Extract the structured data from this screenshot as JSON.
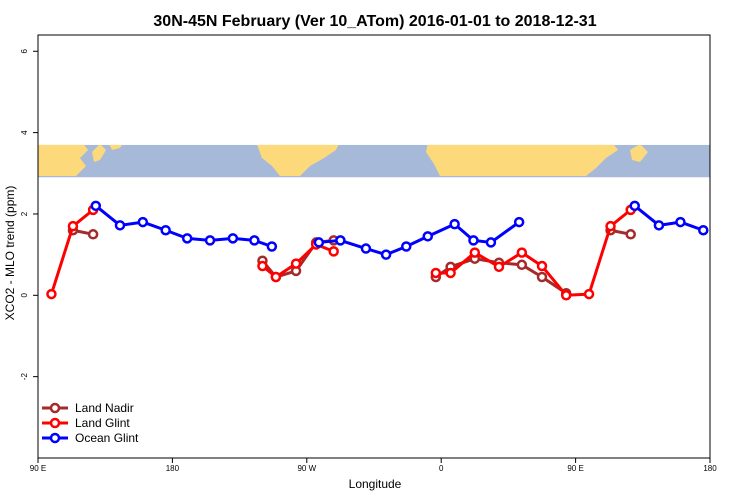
{
  "chart_data": {
    "type": "line",
    "title": "30N-45N February (Ver 10_ATom)   2016-01-01 to 2018-12-31",
    "xlabel": "Longitude",
    "ylabel": "XCO2 - MLO trend (ppm)",
    "xlim": [
      0,
      500
    ],
    "ylim": [
      -4,
      6.4
    ],
    "x_ticks": [
      {
        "value": 0,
        "label": "90 E"
      },
      {
        "value": 100,
        "label": "180"
      },
      {
        "value": 200,
        "label": "90 W"
      },
      {
        "value": 300,
        "label": "0"
      },
      {
        "value": 400,
        "label": "90 E"
      },
      {
        "value": 500,
        "label": "180"
      }
    ],
    "y_ticks": [
      {
        "value": -2,
        "label": "-2"
      },
      {
        "value": 0,
        "label": "0"
      },
      {
        "value": 2,
        "label": "2"
      },
      {
        "value": 4,
        "label": "4"
      },
      {
        "value": 6,
        "label": "6"
      }
    ],
    "map_band": {
      "y_min": 2.9,
      "y_max": 3.7,
      "ocean_color": "#A6B9D9",
      "land_color": "#FCD97A"
    },
    "legend_position": "bottom-left",
    "series": [
      {
        "name": "Land Nadir",
        "color": "#A52A2A",
        "segments": [
          [
            [
              26,
              1.6
            ],
            [
              41,
              1.5
            ]
          ],
          [
            [
              167,
              0.85
            ],
            [
              177,
              0.45
            ],
            [
              192,
              0.6
            ],
            [
              207,
              1.3
            ],
            [
              220,
              1.35
            ]
          ],
          [
            [
              296,
              0.45
            ],
            [
              307,
              0.7
            ],
            [
              325,
              0.9
            ],
            [
              343,
              0.8
            ],
            [
              360,
              0.75
            ],
            [
              375,
              0.45
            ],
            [
              393,
              0.05
            ]
          ],
          [
            [
              426,
              1.6
            ],
            [
              441,
              1.5
            ]
          ]
        ]
      },
      {
        "name": "Land Glint",
        "color": "#FF0000",
        "segments": [
          [
            [
              10,
              0.03
            ],
            [
              26,
              1.7
            ],
            [
              41,
              2.1
            ]
          ],
          [
            [
              167,
              0.72
            ],
            [
              177,
              0.45
            ],
            [
              192,
              0.78
            ],
            [
              207,
              1.25
            ],
            [
              220,
              1.08
            ]
          ],
          [
            [
              296,
              0.55
            ],
            [
              307,
              0.55
            ],
            [
              325,
              1.05
            ],
            [
              343,
              0.7
            ],
            [
              360,
              1.05
            ],
            [
              375,
              0.72
            ],
            [
              393,
              0.0
            ],
            [
              410,
              0.03
            ],
            [
              426,
              1.7
            ],
            [
              441,
              2.1
            ]
          ]
        ]
      },
      {
        "name": "Ocean Glint",
        "color": "#0000FF",
        "segments": [
          [
            [
              43,
              2.2
            ],
            [
              61,
              1.72
            ],
            [
              78,
              1.8
            ],
            [
              95,
              1.6
            ],
            [
              111,
              1.4
            ],
            [
              128,
              1.35
            ],
            [
              145,
              1.4
            ],
            [
              161,
              1.35
            ],
            [
              174,
              1.2
            ]
          ],
          [
            [
              209,
              1.3
            ],
            [
              225,
              1.35
            ],
            [
              244,
              1.15
            ],
            [
              259,
              1.0
            ],
            [
              274,
              1.2
            ],
            [
              290,
              1.45
            ],
            [
              310,
              1.75
            ],
            [
              324,
              1.35
            ],
            [
              337,
              1.3
            ],
            [
              358,
              1.8
            ]
          ],
          [
            [
              444,
              2.2
            ],
            [
              462,
              1.72
            ],
            [
              478,
              1.8
            ],
            [
              495,
              1.6
            ]
          ]
        ]
      }
    ]
  }
}
